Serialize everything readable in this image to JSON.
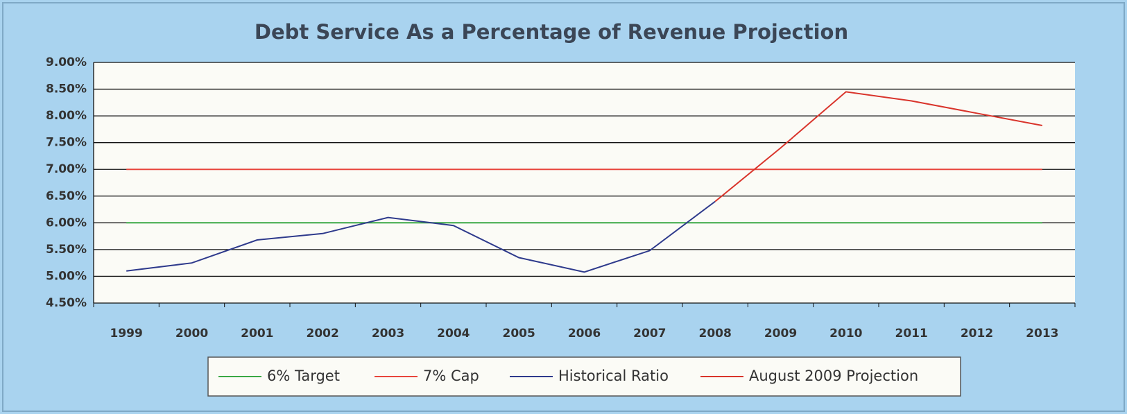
{
  "chart_data": {
    "type": "line",
    "title": "Debt Service As a Percentage of Revenue Projection",
    "categories": [
      "1999",
      "2000",
      "2001",
      "2002",
      "2003",
      "2004",
      "2005",
      "2006",
      "2007",
      "2008",
      "2009",
      "2010",
      "2011",
      "2012",
      "2013"
    ],
    "series": [
      {
        "name": "6% Target",
        "color": "#3aa844",
        "values": [
          6,
          6,
          6,
          6,
          6,
          6,
          6,
          6,
          6,
          6,
          6,
          6,
          6,
          6,
          6
        ]
      },
      {
        "name": "7% Cap",
        "color": "#e8453c",
        "values": [
          7,
          7,
          7,
          7,
          7,
          7,
          7,
          7,
          7,
          7,
          7,
          7,
          7,
          7,
          7
        ]
      },
      {
        "name": "Historical Ratio",
        "color": "#2e3a8c",
        "values": [
          5.1,
          5.25,
          5.68,
          5.8,
          6.1,
          5.95,
          5.35,
          5.08,
          5.48,
          6.4,
          null,
          null,
          null,
          null,
          null
        ]
      },
      {
        "name": "August 2009 Projection",
        "color": "#d9342b",
        "values": [
          null,
          null,
          null,
          null,
          null,
          null,
          null,
          null,
          null,
          6.4,
          7.4,
          8.45,
          8.28,
          8.05,
          7.82
        ]
      }
    ],
    "ylim": [
      4.5,
      9.0
    ],
    "yticks": [
      {
        "value": 4.5,
        "label": "4.50%"
      },
      {
        "value": 5.0,
        "label": "5.00%"
      },
      {
        "value": 5.5,
        "label": "5.50%"
      },
      {
        "value": 6.0,
        "label": "6.00%"
      },
      {
        "value": 6.5,
        "label": "6.50%"
      },
      {
        "value": 7.0,
        "label": "7.00%"
      },
      {
        "value": 7.5,
        "label": "7.50%"
      },
      {
        "value": 8.0,
        "label": "8.00%"
      },
      {
        "value": 8.5,
        "label": "8.50%"
      },
      {
        "value": 9.0,
        "label": "9.00%"
      }
    ],
    "grid": true,
    "legend": "bottom"
  }
}
